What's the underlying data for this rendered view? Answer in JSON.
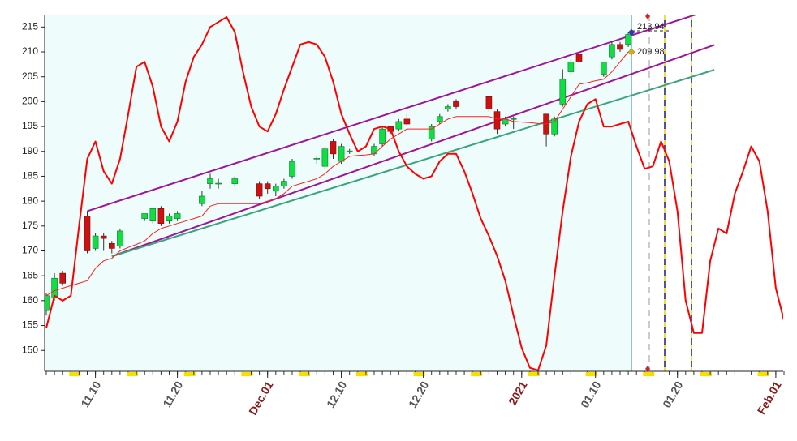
{
  "chart_data": {
    "type": "candlestick",
    "categories": [
      null,
      null,
      null,
      null,
      null,
      null,
      "11.10",
      null,
      null,
      null,
      null,
      null,
      null,
      null,
      null,
      null,
      "11.20",
      null,
      null,
      null,
      null,
      null,
      null,
      null,
      null,
      null,
      null,
      "Dec.01",
      null,
      null,
      null,
      null,
      null,
      null,
      null,
      null,
      "12.10",
      null,
      null,
      null,
      null,
      null,
      null,
      null,
      null,
      null,
      "12.20",
      null,
      null,
      null,
      null,
      null,
      null,
      null,
      null,
      null,
      null,
      null,
      "2021",
      null,
      null,
      null,
      null,
      null,
      null,
      null,
      null,
      "01.10",
      null,
      null,
      null,
      null,
      null,
      null,
      null,
      null,
      null,
      "01.20",
      null,
      null,
      null,
      null,
      null,
      null,
      null,
      null,
      null,
      null,
      null,
      "Feb.01",
      null
    ],
    "open": [
      158,
      160.5,
      165.5,
      null,
      null,
      177,
      170.5,
      173,
      171.5,
      171,
      null,
      null,
      176.5,
      176,
      178.5,
      176,
      176.5,
      null,
      null,
      179.5,
      183.5,
      183.5,
      null,
      183.5,
      null,
      null,
      183.5,
      183.5,
      182,
      183,
      185,
      null,
      null,
      188.5,
      187,
      192,
      188,
      190,
      null,
      null,
      189.5,
      191.5,
      195,
      194.5,
      196.5,
      null,
      null,
      192.5,
      196,
      198.5,
      200,
      null,
      null,
      null,
      201,
      198,
      195.5,
      196.5,
      null,
      null,
      null,
      197.5,
      193.5,
      199.5,
      206,
      209.5,
      null,
      null,
      205.5,
      209,
      211.5,
      211.5,
      null,
      null,
      null,
      null,
      null,
      null,
      null,
      null,
      null,
      null,
      null,
      null,
      null,
      null,
      null,
      null,
      null,
      null,
      null
    ],
    "high": [
      161.5,
      165.5,
      166,
      null,
      null,
      178,
      173.5,
      173.5,
      172,
      174.5,
      null,
      null,
      177.5,
      178.5,
      179,
      177.5,
      178,
      null,
      null,
      182,
      185.5,
      184.5,
      null,
      185,
      null,
      null,
      184,
      184,
      183.5,
      184.5,
      188.5,
      null,
      null,
      189,
      191,
      192.5,
      191.5,
      190.5,
      null,
      null,
      191.5,
      195,
      195,
      196.5,
      197.5,
      null,
      null,
      195.5,
      197.5,
      199.5,
      200.5,
      null,
      null,
      null,
      201,
      198.5,
      197,
      197,
      null,
      null,
      null,
      197.5,
      197,
      206.5,
      208.5,
      210,
      null,
      null,
      208,
      212,
      212,
      214,
      null,
      null,
      null,
      null,
      null,
      null,
      null,
      null,
      null,
      null,
      null,
      null,
      null,
      null,
      null,
      null,
      null,
      null,
      null
    ],
    "low": [
      157,
      160,
      163,
      null,
      null,
      169.5,
      170,
      170,
      169.5,
      170.5,
      null,
      null,
      176,
      175.5,
      175,
      175.5,
      176,
      null,
      null,
      179,
      182.5,
      182.5,
      null,
      183,
      null,
      null,
      180.5,
      181.5,
      181,
      182.5,
      184.5,
      null,
      null,
      187.5,
      186.5,
      188.5,
      187.5,
      189.5,
      null,
      null,
      189,
      191,
      193.5,
      194,
      195,
      null,
      null,
      192,
      195.5,
      198,
      198.5,
      null,
      null,
      null,
      198,
      193.5,
      195,
      194.5,
      null,
      null,
      null,
      191,
      193,
      199,
      205.5,
      207.5,
      null,
      null,
      205,
      208.5,
      210,
      211,
      null,
      null,
      null,
      null,
      null,
      null,
      null,
      null,
      null,
      null,
      null,
      null,
      null,
      null,
      null,
      null,
      null,
      null,
      null
    ],
    "close": [
      161,
      164.5,
      163.5,
      null,
      null,
      170,
      173,
      172.5,
      170.5,
      174,
      null,
      null,
      177.5,
      178.5,
      175.5,
      177,
      177.5,
      null,
      null,
      181,
      184.5,
      183.6,
      null,
      184.5,
      null,
      null,
      181,
      182.5,
      183,
      184,
      188,
      null,
      null,
      188.6,
      190.5,
      189.5,
      191,
      190.1,
      null,
      null,
      191,
      194.5,
      194,
      196,
      195.5,
      null,
      null,
      195,
      197,
      199,
      199,
      null,
      null,
      null,
      198.5,
      194.5,
      196.5,
      196.6,
      null,
      null,
      null,
      193.5,
      196.5,
      204.5,
      208,
      208,
      null,
      null,
      208,
      211.5,
      210.5,
      213.5,
      null,
      null,
      null,
      null,
      null,
      null,
      null,
      null,
      null,
      null,
      null,
      null,
      null,
      null,
      null,
      null,
      null,
      null,
      null
    ],
    "up_color": "#11dd44",
    "down_color": "#cc1111",
    "lines": [
      {
        "color": "#ff0000",
        "width": 2,
        "values": [
          154.5,
          161,
          160,
          161,
          175,
          188.5,
          192,
          186,
          183.5,
          188.5,
          197.5,
          207,
          208,
          203,
          195,
          192,
          196,
          204,
          209,
          211.5,
          215,
          216,
          217,
          214,
          206,
          199,
          195,
          194,
          197.5,
          202.5,
          207,
          211.5,
          212,
          211.5,
          209,
          204,
          197.5,
          193.5,
          190,
          191,
          194.5,
          195,
          194.5,
          190,
          187,
          185.5,
          184.5,
          185,
          188,
          189.5,
          189.5,
          186,
          181.5,
          176.5,
          173,
          169,
          164,
          157,
          150.5,
          146.5,
          146,
          151,
          165,
          178,
          189,
          196,
          199.5,
          200.5,
          195,
          195,
          195.5,
          196,
          191,
          186.5,
          187,
          192,
          188,
          178,
          160,
          153.5,
          153.5,
          168,
          174.5,
          173.5,
          181.5,
          186,
          191,
          188,
          178,
          162.5,
          156
        ]
      },
      {
        "color": "#ff2020",
        "width": 1,
        "values": [
          161,
          162,
          162.5,
          163,
          163.5,
          164,
          166.5,
          168,
          168.5,
          170,
          170.7,
          171.3,
          172,
          173.5,
          174.5,
          175,
          175.5,
          176,
          176.5,
          177,
          179,
          179.5,
          179.5,
          179.5,
          179.5,
          179.5,
          179.5,
          180,
          180.5,
          181.5,
          183,
          183.5,
          184,
          184.5,
          185.5,
          187,
          188,
          189,
          189.2,
          189.3,
          189.5,
          191,
          192.5,
          193.5,
          194.5,
          194.5,
          194.5,
          194.5,
          195.5,
          196.5,
          197,
          197,
          197,
          197,
          197,
          196.5,
          196.5,
          196,
          195.9,
          195.8,
          195.6,
          195.5,
          196,
          198.5,
          201,
          203.5,
          203.8,
          204.2,
          204.5,
          206,
          208,
          210,
          null,
          null,
          null,
          null,
          null,
          null,
          null,
          null,
          null,
          null,
          null,
          null,
          null,
          null,
          null,
          null,
          null,
          null,
          null
        ]
      }
    ],
    "trendlines": [
      {
        "color": "#a0139c",
        "x": [
          5,
          81.5
        ],
        "values": [
          178,
          218.7
        ]
      },
      {
        "color": "#a0139c",
        "x": [
          8,
          81.5
        ],
        "values": [
          168.9,
          211.4
        ]
      },
      {
        "color": "#3aa57d",
        "x": [
          8,
          81.5
        ],
        "values": [
          168.9,
          206.4
        ]
      }
    ],
    "annotations": [
      {
        "label": "213.94",
        "value": 213.94
      },
      {
        "label": "209.98",
        "value": 209.98
      }
    ],
    "ylim": [
      145.8,
      217.5
    ],
    "yticks": [
      150,
      155,
      160,
      165,
      170,
      175,
      180,
      185,
      190,
      195,
      200,
      205,
      210,
      215
    ]
  }
}
